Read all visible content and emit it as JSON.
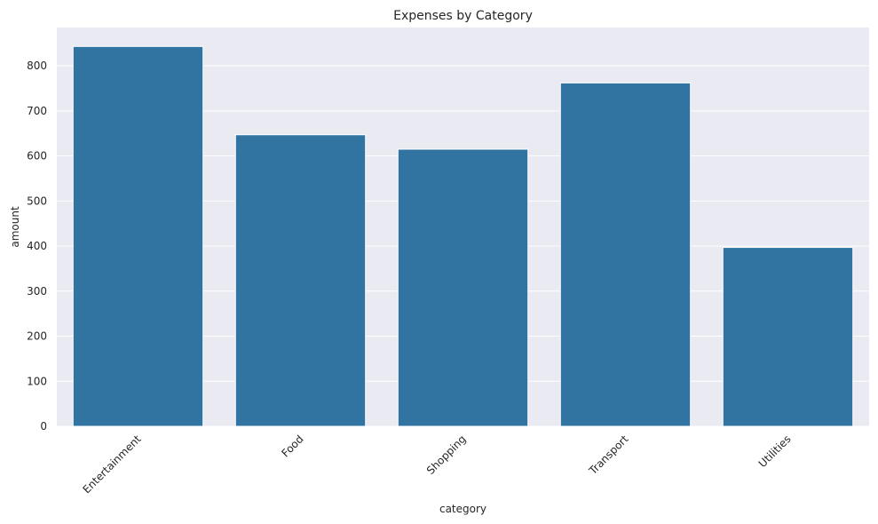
{
  "chart_data": {
    "type": "bar",
    "title": "Expenses by Category",
    "xlabel": "category",
    "ylabel": "amount",
    "categories": [
      "Entertainment",
      "Food",
      "Shopping",
      "Transport",
      "Utilities"
    ],
    "values": [
      843,
      647,
      615,
      762,
      397
    ],
    "ylim": [
      0,
      885
    ],
    "yticks": [
      0,
      100,
      200,
      300,
      400,
      500,
      600,
      700,
      800
    ],
    "grid": true,
    "style": {
      "bar_color": "#3274a1",
      "plot_background": "#eaeaf2",
      "grid_color": "#ffffff",
      "text_color": "#262626"
    }
  }
}
